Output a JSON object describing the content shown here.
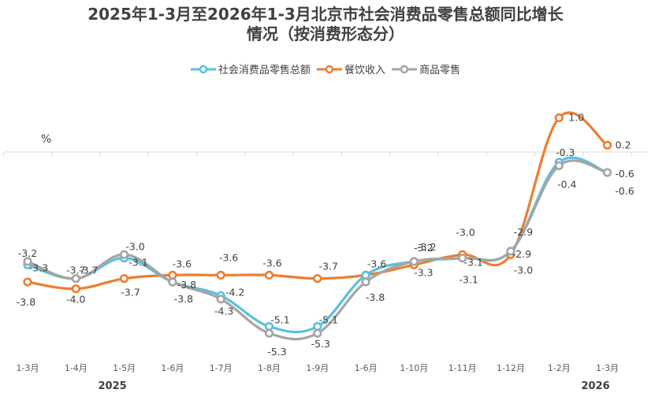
{
  "chart_data": {
    "type": "line",
    "title_line1": "2025年1-3月至2026年1-3月北京市社会消费品零售总额同比增长",
    "title_line2": "情况（按消费形态分）",
    "ylabel": "%",
    "categories": [
      "1-3月",
      "1-4月",
      "1-5月",
      "1-6月",
      "1-7月",
      "1-8月",
      "1-9月",
      "1-6月",
      "1-10月",
      "1-11月",
      "1-12月",
      "1-2月",
      "1-3月"
    ],
    "year_labels": [
      {
        "text": "2025",
        "category_index": 2
      },
      {
        "text": "2026",
        "category_index": 12
      }
    ],
    "ylim": [
      -6.5,
      1.5
    ],
    "grid": false,
    "legend_position": "top-center",
    "series": [
      {
        "name": "社会消费品零售总额",
        "color": "#5BC0DE",
        "values": [
          -3.3,
          -3.7,
          -3.1,
          -3.8,
          -4.2,
          -5.1,
          -5.1,
          -3.6,
          -3.2,
          -3.1,
          -2.9,
          -0.3,
          -0.6
        ],
        "labels": [
          "-3.3",
          "-3.7",
          "-3.1",
          "-3.8",
          "-4.2",
          "-5.1",
          "-5.1",
          "-3.6",
          "-3.2",
          "-3.1",
          "-2.9",
          "-0.3",
          "-0.6"
        ]
      },
      {
        "name": "餐饮收入",
        "color": "#ED7D31",
        "values": [
          -3.8,
          -4.0,
          -3.7,
          -3.6,
          -3.6,
          -3.6,
          -3.7,
          -3.6,
          -3.3,
          -3.0,
          -3.0,
          1.0,
          0.2
        ],
        "labels": [
          "-3.8",
          "-4.0",
          "-3.7",
          "-3.6",
          "-3.6",
          "-3.6",
          "-3.7",
          "",
          "-3.3",
          "-3.0",
          "-3.0",
          "1.0",
          "0.2"
        ]
      },
      {
        "name": "商品零售",
        "color": "#A5A5A5",
        "values": [
          -3.2,
          -3.7,
          -3.0,
          -3.8,
          -4.3,
          -5.3,
          -5.3,
          -3.8,
          -3.2,
          -3.1,
          -2.9,
          -0.4,
          -0.6
        ],
        "labels": [
          "-3.2",
          "-3.7",
          "-3.0",
          "-3.8",
          "-4.3",
          "-5.3",
          "-5.3",
          "-3.8",
          "-3.2",
          "-3.1",
          "-2.9",
          "-0.4",
          "-0.6"
        ]
      }
    ]
  }
}
